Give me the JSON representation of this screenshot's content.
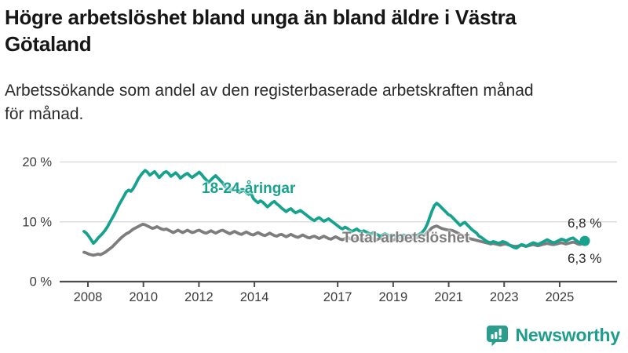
{
  "header": {
    "title": "Högre arbetslöshet bland unga än bland äldre i Västra\nGötaland",
    "subtitle": "Arbetssökande som andel av den registerbaserade arbetskraften månad\nför månad."
  },
  "branding": {
    "logo_text": "Newsworthy"
  },
  "colors": {
    "accent_teal": "#17a28e",
    "series_gray": "#7d7d7d",
    "gridline": "#dedede",
    "axis": "#4c4c4c",
    "tick_label": "#3c3c3c",
    "value_label": "#2b2b2b"
  },
  "chart_data": {
    "type": "line",
    "title": "Högre arbetslöshet bland unga än bland äldre i Västra Götaland",
    "subtitle": "Arbetssökande som andel av den registerbaserade arbetskraften månad för månad.",
    "unit": "%",
    "frequency": "monthly",
    "x_start": "2008-01",
    "x_end": "2025-10",
    "ylim": [
      0,
      22
    ],
    "grid": "horizontal",
    "legend_position": "inline-labels",
    "yticks": [
      {
        "value": 0,
        "label": "0 %"
      },
      {
        "value": 10,
        "label": "10 %"
      },
      {
        "value": 20,
        "label": "20 %"
      }
    ],
    "xticks": [
      {
        "year": 2008,
        "label": "2008"
      },
      {
        "year": 2010,
        "label": "2010"
      },
      {
        "year": 2012,
        "label": "2012"
      },
      {
        "year": 2014,
        "label": "2014"
      },
      {
        "year": 2017,
        "label": "2017"
      },
      {
        "year": 2019,
        "label": "2019"
      },
      {
        "year": 2021,
        "label": "2021"
      },
      {
        "year": 2023,
        "label": "2023"
      },
      {
        "year": 2025,
        "label": "2025"
      }
    ],
    "series": [
      {
        "name": "18-24-åringar",
        "color": "#17a28e",
        "end_label": "6,8 %",
        "end_value": 6.8,
        "values": [
          8.4,
          8.1,
          7.6,
          7.0,
          6.4,
          6.8,
          7.3,
          7.7,
          8.1,
          8.6,
          9.2,
          9.9,
          10.6,
          11.3,
          12.1,
          12.9,
          13.6,
          14.3,
          15.0,
          15.3,
          15.1,
          15.6,
          16.3,
          17.1,
          17.7,
          18.2,
          18.6,
          18.3,
          17.8,
          18.1,
          18.4,
          17.9,
          17.4,
          17.8,
          18.2,
          18.4,
          18.1,
          17.6,
          17.9,
          18.2,
          17.8,
          17.3,
          17.6,
          17.9,
          18.1,
          17.7,
          17.4,
          17.7,
          18.0,
          18.3,
          17.9,
          17.4,
          17.0,
          16.6,
          17.0,
          17.4,
          17.7,
          17.3,
          16.9,
          16.5,
          15.9,
          15.5,
          15.2,
          15.5,
          15.7,
          15.3,
          14.9,
          15.1,
          15.3,
          14.9,
          14.6,
          14.8,
          13.9,
          13.5,
          13.2,
          13.5,
          13.3,
          12.9,
          12.5,
          12.8,
          13.2,
          13.4,
          13.0,
          12.7,
          12.3,
          12.0,
          11.7,
          12.0,
          12.2,
          11.8,
          11.5,
          11.7,
          11.9,
          11.6,
          11.3,
          11.0,
          10.7,
          10.4,
          10.2,
          10.5,
          10.7,
          10.4,
          10.1,
          10.3,
          10.5,
          10.2,
          9.9,
          9.6,
          9.3,
          9.0,
          8.8,
          9.1,
          8.9,
          8.6,
          8.4,
          8.6,
          8.8,
          8.5,
          8.3,
          8.5,
          8.3,
          8.1,
          7.9,
          8.2,
          8.0,
          7.8,
          7.6,
          7.8,
          8.0,
          7.8,
          7.6,
          7.8,
          7.7,
          7.5,
          7.4,
          7.6,
          7.8,
          7.6,
          7.4,
          7.6,
          7.8,
          7.6,
          7.8,
          8.0,
          8.3,
          8.8,
          9.6,
          10.7,
          11.8,
          12.7,
          13.1,
          12.8,
          12.4,
          12.0,
          11.6,
          11.2,
          11.0,
          10.6,
          10.2,
          9.8,
          9.4,
          9.7,
          9.9,
          9.5,
          9.1,
          8.7,
          8.4,
          8.1,
          7.6,
          7.4,
          7.1,
          6.8,
          6.6,
          6.5,
          6.7,
          6.6,
          6.4,
          6.5,
          6.7,
          6.6,
          6.4,
          6.1,
          5.9,
          5.7,
          5.6,
          5.9,
          6.2,
          6.1,
          5.9,
          6.1,
          6.3,
          6.5,
          6.4,
          6.2,
          6.4,
          6.6,
          6.8,
          7.0,
          6.8,
          6.6,
          6.5,
          6.7,
          6.9,
          7.1,
          7.0,
          6.8,
          7.0,
          7.2,
          7.3,
          7.0,
          6.7,
          6.5,
          6.7,
          6.8
        ]
      },
      {
        "name": "Total arbetslöshet",
        "color": "#7d7d7d",
        "end_label": "6,3 %",
        "end_value": 6.3,
        "values": [
          4.9,
          4.8,
          4.6,
          4.5,
          4.4,
          4.5,
          4.6,
          4.5,
          4.7,
          4.9,
          5.2,
          5.5,
          5.8,
          6.2,
          6.6,
          7.0,
          7.4,
          7.7,
          8.0,
          8.2,
          8.5,
          8.8,
          9.0,
          9.2,
          9.4,
          9.6,
          9.5,
          9.3,
          9.1,
          8.9,
          9.0,
          9.2,
          9.0,
          8.8,
          8.7,
          8.8,
          8.6,
          8.4,
          8.2,
          8.4,
          8.6,
          8.4,
          8.2,
          8.4,
          8.6,
          8.4,
          8.2,
          8.3,
          8.5,
          8.6,
          8.4,
          8.2,
          8.1,
          8.3,
          8.5,
          8.3,
          8.1,
          8.3,
          8.5,
          8.6,
          8.4,
          8.2,
          8.0,
          8.2,
          8.4,
          8.2,
          8.0,
          7.9,
          8.1,
          8.3,
          8.1,
          7.9,
          7.8,
          8.0,
          8.2,
          8.0,
          7.8,
          7.7,
          7.9,
          8.1,
          7.9,
          7.7,
          7.6,
          7.8,
          7.9,
          7.7,
          7.5,
          7.7,
          7.9,
          7.7,
          7.5,
          7.4,
          7.6,
          7.8,
          7.6,
          7.4,
          7.3,
          7.5,
          7.6,
          7.4,
          7.2,
          7.4,
          7.6,
          7.4,
          7.2,
          7.1,
          7.3,
          7.5,
          7.3,
          7.1,
          7.0,
          7.2,
          7.4,
          7.2,
          7.0,
          7.1,
          7.3,
          7.1,
          6.9,
          7.1,
          7.0,
          7.2,
          7.3,
          7.1,
          6.9,
          7.1,
          7.3,
          7.1,
          7.0,
          7.2,
          7.0,
          6.9,
          7.0,
          7.2,
          7.4,
          7.2,
          7.0,
          7.2,
          7.4,
          7.2,
          7.1,
          7.3,
          7.4,
          7.5,
          7.6,
          7.8,
          8.2,
          8.6,
          9.0,
          9.2,
          9.3,
          9.1,
          8.9,
          8.8,
          8.7,
          8.6,
          8.6,
          8.5,
          8.3,
          8.1,
          7.9,
          7.7,
          7.6,
          7.4,
          7.2,
          7.1,
          7.0,
          6.9,
          6.8,
          6.7,
          6.6,
          6.5,
          6.4,
          6.3,
          6.4,
          6.3,
          6.2,
          6.1,
          6.2,
          6.3,
          6.2,
          6.1,
          6.0,
          5.9,
          5.9,
          6.0,
          6.1,
          6.0,
          5.9,
          6.0,
          6.1,
          6.2,
          6.1,
          6.0,
          6.1,
          6.2,
          6.3,
          6.4,
          6.3,
          6.2,
          6.2,
          6.3,
          6.4,
          6.5,
          6.4,
          6.3,
          6.4,
          6.5,
          6.6,
          6.5,
          6.3,
          6.2,
          6.4,
          6.3
        ]
      }
    ]
  }
}
